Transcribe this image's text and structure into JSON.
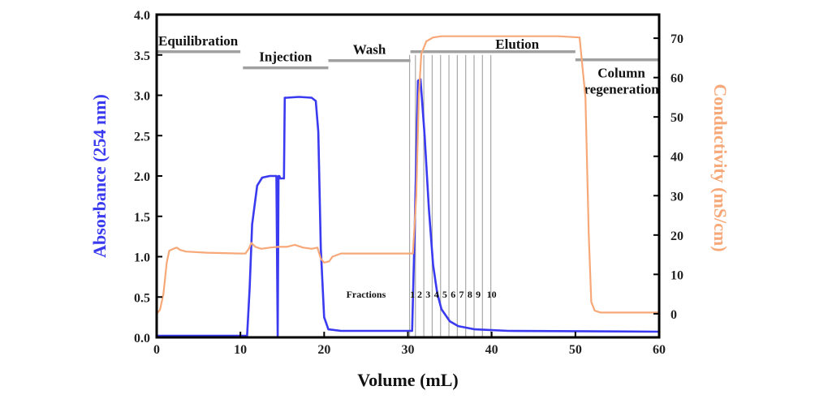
{
  "chart_data": {
    "type": "line",
    "title": "",
    "xlabel": "Volume (mL)",
    "ylabel_left": "Absorbance (254 nm)",
    "ylabel_right": "Conductivity (mS/cm)",
    "xlim": [
      0,
      60
    ],
    "ylim_left": [
      0,
      4
    ],
    "ylim_right": [
      -6,
      76
    ],
    "xticks": [
      "0",
      "10",
      "20",
      "30",
      "40",
      "50",
      "60"
    ],
    "yticks_left": [
      "0.0",
      "0.5",
      "1.0",
      "1.5",
      "2.0",
      "2.5",
      "3.0",
      "3.5",
      "4.0"
    ],
    "yticks_right": [
      "0",
      "10",
      "20",
      "30",
      "40",
      "50",
      "60",
      "70"
    ],
    "colors": {
      "absorbance": "#3a3af0",
      "conductivity": "#f7a878",
      "phase_bar": "#a0a0a0",
      "fraction_line": "#a8a8a8",
      "axis": "#000000"
    },
    "series": [
      {
        "name": "Absorbance (254 nm)",
        "axis": "left",
        "x": [
          0,
          10.8,
          11.1,
          11.4,
          12.0,
          12.6,
          13.5,
          14.3,
          14.45,
          14.55,
          14.65,
          14.75,
          15.2,
          15.3,
          15.5,
          17.0,
          18.5,
          19.0,
          19.3,
          19.6,
          20.0,
          20.5,
          22.0,
          25.0,
          30.5,
          30.8,
          31.2,
          31.5,
          32.0,
          32.5,
          33.0,
          33.5,
          34.0,
          35.0,
          36.0,
          38.0,
          42.0,
          60.0
        ],
        "values": [
          0.02,
          0.02,
          0.6,
          1.4,
          1.88,
          1.98,
          2.0,
          2.0,
          0.02,
          2.0,
          2.0,
          1.97,
          1.97,
          2.97,
          2.97,
          2.98,
          2.97,
          2.93,
          2.55,
          1.1,
          0.25,
          0.1,
          0.08,
          0.08,
          0.08,
          1.3,
          3.18,
          3.2,
          2.5,
          1.6,
          0.9,
          0.55,
          0.35,
          0.2,
          0.14,
          0.1,
          0.08,
          0.07
        ]
      },
      {
        "name": "Conductivity (mS/cm)",
        "axis": "right",
        "x": [
          0,
          0.4,
          0.8,
          1.2,
          1.5,
          2.0,
          2.4,
          2.8,
          3.5,
          6.0,
          10.0,
          10.6,
          11.0,
          11.3,
          11.8,
          12.5,
          13.5,
          14.5,
          15.5,
          16.5,
          17.5,
          18.5,
          19.2,
          19.6,
          20.0,
          20.6,
          21.0,
          22.0,
          26.0,
          30.6,
          31.0,
          31.3,
          31.6,
          32.2,
          33.0,
          34.0,
          40.0,
          48.0,
          50.5,
          51.2,
          51.6,
          51.9,
          52.3,
          53.0,
          60.0
        ],
        "values": [
          0,
          1,
          5,
          13,
          16,
          16.5,
          16.8,
          16.2,
          15.8,
          15.5,
          15.3,
          15.3,
          16.5,
          18,
          17,
          16.5,
          16.8,
          17,
          17,
          17.5,
          16.8,
          16.5,
          16.8,
          14,
          13,
          13.3,
          14.5,
          15.3,
          15.3,
          15.3,
          30,
          55,
          66,
          69.2,
          70.2,
          70.5,
          70.5,
          70.5,
          70.2,
          55,
          20,
          3,
          0.8,
          0.3,
          0.3
        ]
      }
    ],
    "phases": [
      {
        "label": "Equilibration",
        "x0": 0,
        "x1": 10,
        "y": 3.54
      },
      {
        "label": "Injection",
        "x0": 10.3,
        "x1": 20.5,
        "y": 3.34
      },
      {
        "label": "Wash",
        "x0": 20.5,
        "x1": 30.3,
        "y": 3.43
      },
      {
        "label": "Elution",
        "x0": 30.3,
        "x1": 50,
        "y": 3.54
      },
      {
        "label": "Column regeneration",
        "x0": 50,
        "x1": 60,
        "y": 3.44
      }
    ],
    "fractions": {
      "label": "Fractions",
      "numbers": [
        "1",
        "2",
        "3",
        "4",
        "5",
        "6",
        "7",
        "8",
        "9",
        "10"
      ],
      "boundaries": [
        30.9,
        31.9,
        32.9,
        33.9,
        34.9,
        35.9,
        36.9,
        37.9,
        38.9,
        39.9
      ]
    },
    "extra_vline": 30.2,
    "grid": false
  }
}
